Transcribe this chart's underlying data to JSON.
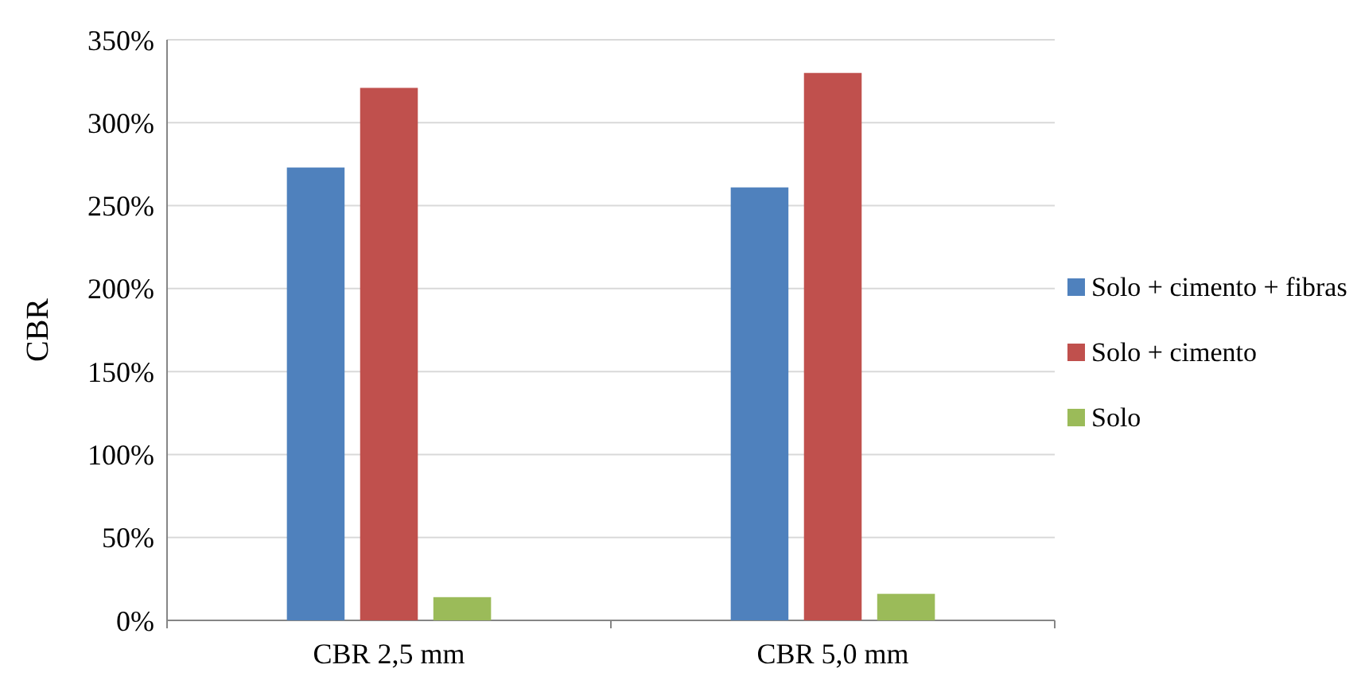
{
  "chart_data": {
    "type": "bar",
    "ylabel": "CBR",
    "categories": [
      "CBR 2,5 mm",
      "CBR 5,0 mm"
    ],
    "series": [
      {
        "name": "Solo + cimento + fibras",
        "color": "#4f81bd",
        "values": [
          273,
          261
        ]
      },
      {
        "name": "Solo + cimento",
        "color": "#c0504d",
        "values": [
          321,
          330
        ]
      },
      {
        "name": "Solo",
        "color": "#9bbb59",
        "values": [
          14,
          16
        ]
      }
    ],
    "ylim": [
      0,
      350
    ],
    "yticks": [
      {
        "value": 0,
        "label": "0%"
      },
      {
        "value": 50,
        "label": "50%"
      },
      {
        "value": 100,
        "label": "100%"
      },
      {
        "value": 150,
        "label": "150%"
      },
      {
        "value": 200,
        "label": "200%"
      },
      {
        "value": 250,
        "label": "250%"
      },
      {
        "value": 300,
        "label": "300%"
      },
      {
        "value": 350,
        "label": "350%"
      }
    ],
    "grid": "y",
    "legend": "right"
  }
}
